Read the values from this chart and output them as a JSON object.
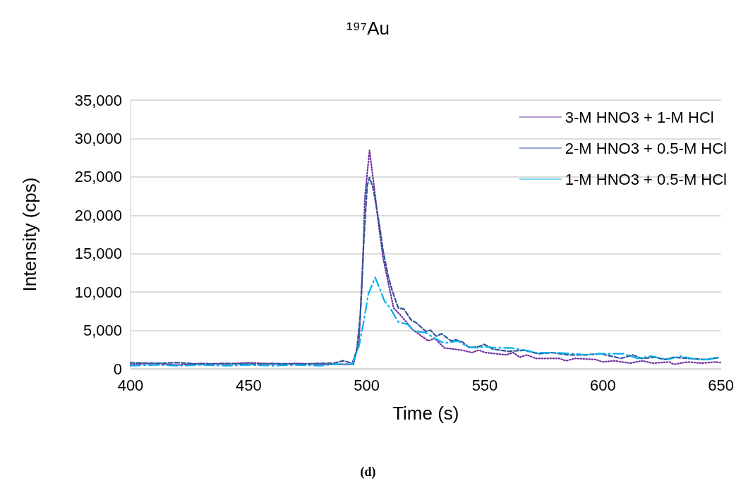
{
  "chart_data": {
    "type": "line",
    "title": "¹⁹⁷Au",
    "xlabel": "Time (s)",
    "ylabel": "Intensity (cps)",
    "annotations": [
      "(d)"
    ],
    "xlim": [
      400,
      650
    ],
    "xticks": [
      400,
      450,
      500,
      550,
      600,
      650
    ],
    "ylim": [
      0,
      35000
    ],
    "yticks": [
      {
        "value": 0,
        "label": "0"
      },
      {
        "value": 5000,
        "label": "5,000"
      },
      {
        "value": 10000,
        "label": "10,000"
      },
      {
        "value": 15000,
        "label": "15,000"
      },
      {
        "value": 20000,
        "label": "20,000"
      },
      {
        "value": 25000,
        "label": "25,000"
      },
      {
        "value": 30000,
        "label": "30,000"
      },
      {
        "value": 35000,
        "label": "35,000"
      }
    ],
    "grid": "y",
    "legend": "top right",
    "marker": "none",
    "series": [
      {
        "name": "3-M HNO3 + 1-M HCl",
        "color": "#7030a0",
        "line_style": "dotted",
        "x": [
          400,
          410,
          420,
          430,
          440,
          450,
          460,
          470,
          480,
          486,
          494.4,
          496.8,
          498.3,
          499.2,
          501.2,
          503.1,
          505.1,
          507,
          509.5,
          511.4,
          514.3,
          519.2,
          526,
          528.9,
          532.8,
          540.6,
          544.5,
          547.4,
          550.3,
          559.1,
          562,
          564.9,
          567.8,
          571.7,
          581.5,
          584.4,
          588.3,
          597,
          599.9,
          604.8,
          611.6,
          616.5,
          621.3,
          628.2,
          630,
          636,
          641.8,
          647.6,
          650
        ],
        "values": [
          600,
          700,
          500,
          700,
          600,
          800,
          600,
          700,
          600,
          580,
          580,
          3950,
          13130,
          22300,
          28440,
          23850,
          18640,
          14350,
          10680,
          7920,
          7000,
          5170,
          3640,
          3950,
          2730,
          2420,
          2110,
          2420,
          2110,
          1810,
          2110,
          1500,
          1810,
          1350,
          1350,
          1040,
          1350,
          1200,
          890,
          1040,
          730,
          1040,
          730,
          890,
          580,
          890,
          730,
          890,
          800
        ]
      },
      {
        "name": "2-M HNO3 + 0.5-M HCl",
        "color": "#2f5597",
        "line_style": "dashed",
        "x": [
          400,
          410,
          420,
          430,
          440,
          450,
          460,
          470,
          480,
          486,
          490,
          493.9,
          495.8,
          497.3,
          498.7,
          500.2,
          501.2,
          502.7,
          504.1,
          505.6,
          507,
          509,
          510.9,
          513.4,
          515.8,
          518.7,
          521.2,
          525,
          527,
          529.4,
          531.8,
          535.7,
          537.7,
          540.6,
          543.5,
          547.4,
          549.8,
          553.4,
          560,
          566.8,
          572.7,
          578.5,
          585.3,
          593.1,
          599,
          607.7,
          612.6,
          616.5,
          622.3,
          626.2,
          630.1,
          636,
          643.7,
          649.6
        ],
        "values": [
          800,
          700,
          800,
          600,
          700,
          600,
          700,
          600,
          700,
          730,
          1040,
          730,
          2420,
          7000,
          16190,
          23850,
          24920,
          23540,
          21090,
          18340,
          15270,
          12210,
          10070,
          7920,
          7770,
          6400,
          5940,
          4870,
          5020,
          4250,
          4560,
          3640,
          3790,
          3490,
          2730,
          2880,
          3180,
          2570,
          2270,
          2420,
          1960,
          2110,
          1810,
          1810,
          1960,
          1350,
          1810,
          1350,
          1500,
          1200,
          1500,
          1350,
          1200,
          1500
        ]
      },
      {
        "name": "1-M HNO3 + 0.5-M HCl",
        "color": "#00b0f0",
        "line_style": "dashdot",
        "x": [
          400,
          410,
          420,
          430,
          440,
          450,
          460,
          470,
          480,
          486,
          493.9,
          496.8,
          498.7,
          500.7,
          503.6,
          506,
          507.5,
          509.9,
          513.4,
          517.3,
          520.2,
          525,
          528.9,
          532.8,
          538.6,
          542.5,
          546.4,
          550.3,
          554.2,
          561,
          566.8,
          571.7,
          579.5,
          587.3,
          593.1,
          599,
          608.7,
          614.5,
          620.4,
          627.2,
          633,
          639.9,
          644.7,
          649.6
        ],
        "values": [
          400,
          500,
          400,
          500,
          400,
          500,
          400,
          500,
          400,
          580,
          580,
          3030,
          6090,
          9760,
          11910,
          10070,
          8840,
          7920,
          6090,
          5790,
          4870,
          4710,
          3950,
          3330,
          3640,
          2880,
          2730,
          2880,
          2730,
          2730,
          2420,
          2110,
          2110,
          1960,
          1810,
          1960,
          1960,
          1350,
          1650,
          1200,
          1650,
          1200,
          1200,
          1500
        ]
      }
    ]
  }
}
